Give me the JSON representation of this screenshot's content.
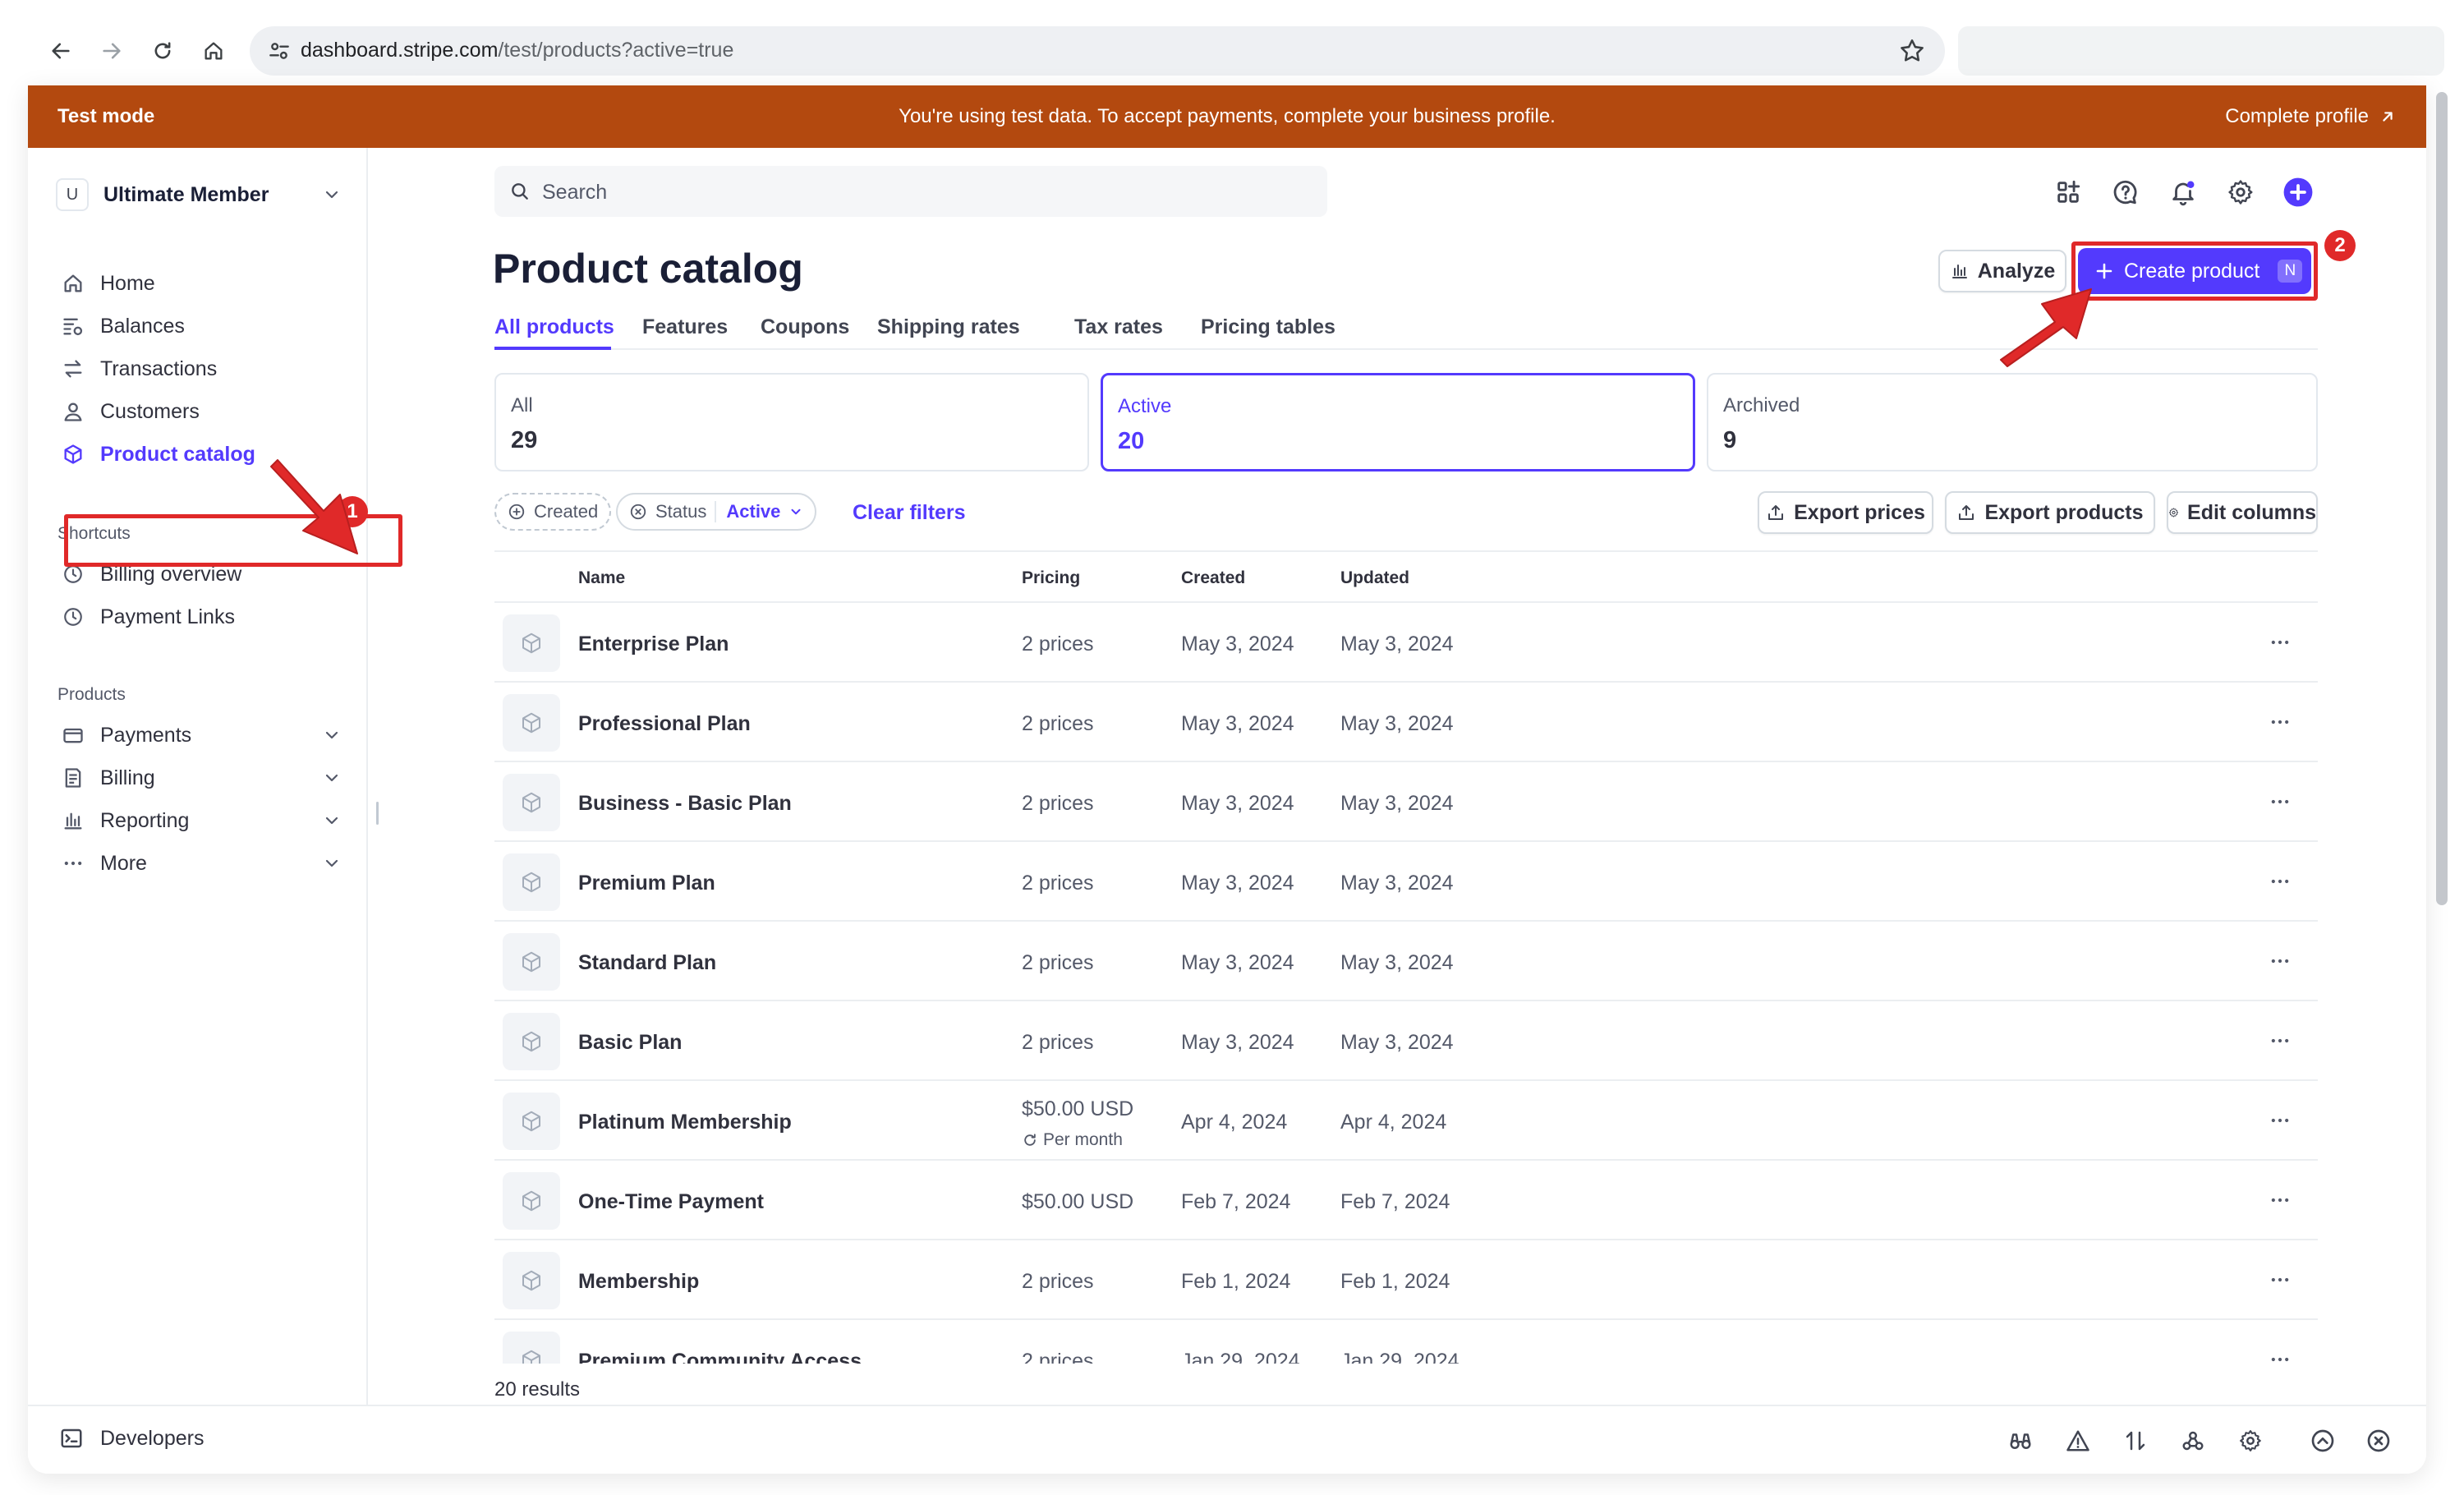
{
  "browser": {
    "url_host": "dashboard.stripe.com",
    "url_path": "/test/products?active=true",
    "icons": [
      "back-icon",
      "forward-icon",
      "reload-icon",
      "home-icon",
      "site-settings-icon",
      "bookmark-star-icon"
    ]
  },
  "banner": {
    "mode": "Test mode",
    "message": "You're using test data. To accept payments, complete your business profile.",
    "cta": "Complete profile",
    "color": "#b3490f"
  },
  "sidebar": {
    "account_initial": "U",
    "account_name": "Ultimate Member",
    "nav": [
      {
        "label": "Home",
        "icon": "home-icon"
      },
      {
        "label": "Balances",
        "icon": "balances-icon"
      },
      {
        "label": "Transactions",
        "icon": "transactions-icon"
      },
      {
        "label": "Customers",
        "icon": "customers-icon"
      },
      {
        "label": "Product catalog",
        "icon": "product-box-icon",
        "active": true
      }
    ],
    "shortcuts_title": "Shortcuts",
    "shortcuts": [
      {
        "label": "Billing overview",
        "icon": "clock-icon"
      },
      {
        "label": "Payment Links",
        "icon": "clock-icon"
      }
    ],
    "products_title": "Products",
    "products": [
      {
        "label": "Payments",
        "icon": "payments-icon"
      },
      {
        "label": "Billing",
        "icon": "billing-icon"
      },
      {
        "label": "Reporting",
        "icon": "reporting-icon"
      },
      {
        "label": "More",
        "icon": "more-dots-icon"
      }
    ]
  },
  "header": {
    "search_placeholder": "Search",
    "title": "Product catalog",
    "analyze_label": "Analyze",
    "create_label": "Create product",
    "create_shortcut": "N",
    "accent_color": "#533afd"
  },
  "tabs": [
    "All products",
    "Features",
    "Coupons",
    "Shipping rates",
    "Tax rates",
    "Pricing tables"
  ],
  "stats": [
    {
      "label": "All",
      "value": "29"
    },
    {
      "label": "Active",
      "value": "20",
      "active": true
    },
    {
      "label": "Archived",
      "value": "9"
    }
  ],
  "filters": {
    "created": "Created",
    "status": "Status",
    "status_value": "Active",
    "clear": "Clear filters",
    "export_prices": "Export prices",
    "export_products": "Export products",
    "edit_columns": "Edit columns"
  },
  "table": {
    "columns": [
      "Name",
      "Pricing",
      "Created",
      "Updated"
    ],
    "rows": [
      {
        "name": "Enterprise Plan",
        "pricing": "2 prices",
        "created": "May 3, 2024",
        "updated": "May 3, 2024"
      },
      {
        "name": "Professional Plan",
        "pricing": "2 prices",
        "created": "May 3, 2024",
        "updated": "May 3, 2024"
      },
      {
        "name": "Business - Basic Plan",
        "pricing": "2 prices",
        "created": "May 3, 2024",
        "updated": "May 3, 2024"
      },
      {
        "name": "Premium Plan",
        "pricing": "2 prices",
        "created": "May 3, 2024",
        "updated": "May 3, 2024"
      },
      {
        "name": "Standard Plan",
        "pricing": "2 prices",
        "created": "May 3, 2024",
        "updated": "May 3, 2024"
      },
      {
        "name": "Basic Plan",
        "pricing": "2 prices",
        "created": "May 3, 2024",
        "updated": "May 3, 2024"
      },
      {
        "name": "Platinum Membership",
        "pricing": "$50.00 USD",
        "pricing_sub": "Per month",
        "created": "Apr 4, 2024",
        "updated": "Apr 4, 2024"
      },
      {
        "name": "One-Time Payment",
        "pricing": "$50.00 USD",
        "created": "Feb 7, 2024",
        "updated": "Feb 7, 2024"
      },
      {
        "name": "Membership",
        "pricing": "2 prices",
        "created": "Feb 1, 2024",
        "updated": "Feb 1, 2024"
      },
      {
        "name": "Premium Community Access",
        "pricing": "2 prices",
        "created": "Jan 29, 2024",
        "updated": "Jan 29, 2024"
      }
    ],
    "results": "20 results"
  },
  "footer": {
    "developers": "Developers"
  },
  "annotations": {
    "badge_1": "1",
    "badge_2": "2",
    "color": "#e02929"
  }
}
